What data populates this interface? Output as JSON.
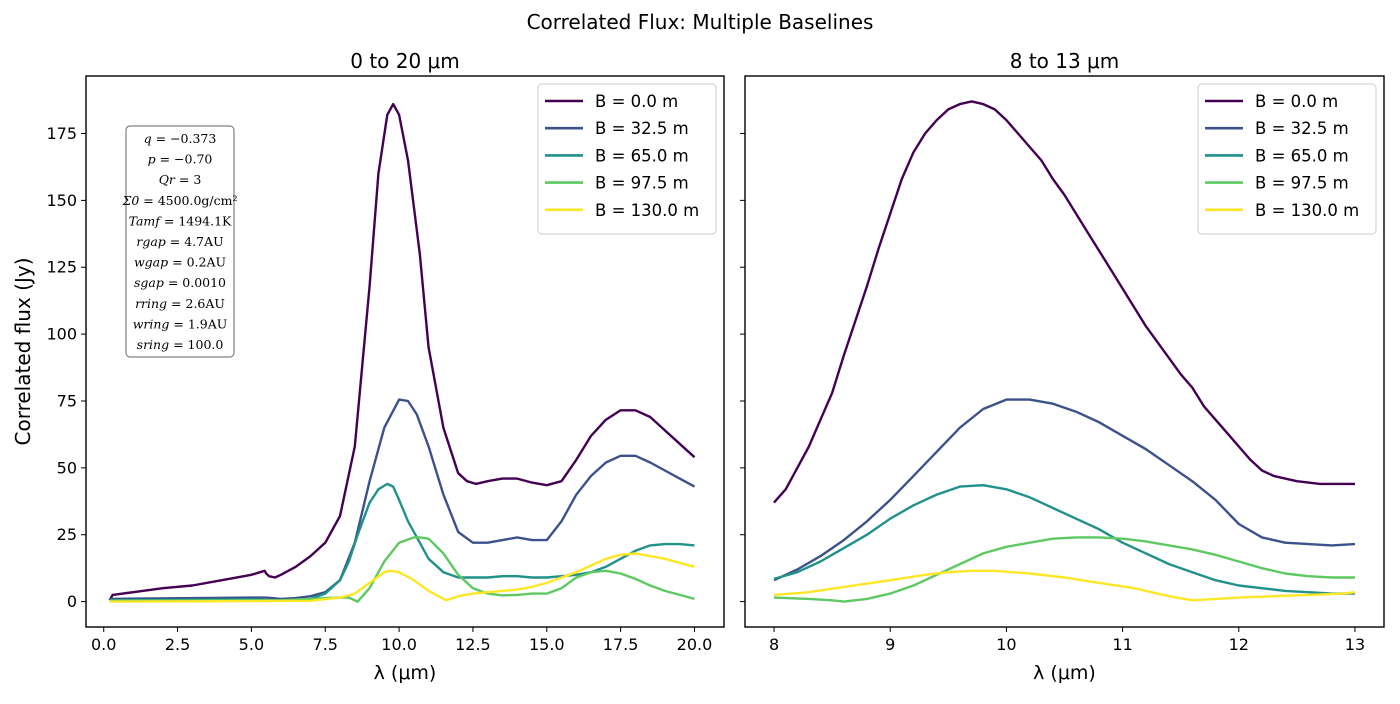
{
  "figure": {
    "suptitle": "Correlated Flux: Multiple Baselines"
  },
  "chart_data": [
    {
      "type": "line",
      "title": "0 to 20 μm",
      "xlabel": "λ (μm)",
      "ylabel": "Correlated flux (Jy)",
      "xlim": [
        -0.6,
        21.0
      ],
      "ylim": [
        -9.5,
        196.5
      ],
      "xticks": [
        0.0,
        2.5,
        5.0,
        7.5,
        10.0,
        12.5,
        15.0,
        17.5,
        20.0
      ],
      "xtick_labels": [
        "0.0",
        "2.5",
        "5.0",
        "7.5",
        "10.0",
        "12.5",
        "15.0",
        "17.5",
        "20.0"
      ],
      "yticks": [
        0,
        25,
        50,
        75,
        100,
        125,
        150,
        175
      ],
      "ytick_labels": [
        "0",
        "25",
        "50",
        "75",
        "100",
        "125",
        "150",
        "175"
      ],
      "legend_position": "upper-right",
      "grid": false,
      "params": [
        {
          "sym": "q",
          "val": "= −0.373"
        },
        {
          "sym": "p",
          "val": "= −0.70"
        },
        {
          "sym": "Qr",
          "val": "= 3"
        },
        {
          "sym": "Σ0",
          "val": "= 4500.0g/cm²"
        },
        {
          "sym": "Tamf",
          "val": "= 1494.1K"
        },
        {
          "sym": "rgap",
          "val": "= 4.7AU"
        },
        {
          "sym": "wgap",
          "val": "= 0.2AU"
        },
        {
          "sym": "sgap",
          "val": "= 0.0010"
        },
        {
          "sym": "rring",
          "val": "= 2.6AU"
        },
        {
          "sym": "wring",
          "val": "= 1.9AU"
        },
        {
          "sym": "sring",
          "val": "= 100.0"
        }
      ],
      "series": [
        {
          "name": "B = 0.0 m",
          "color": "#440154",
          "x": [
            0.2,
            0.3,
            1,
            2,
            3,
            4,
            5,
            5.45,
            5.5,
            5.6,
            5.8,
            6,
            6.5,
            7,
            7.5,
            8,
            8.5,
            9,
            9.3,
            9.6,
            9.8,
            10,
            10.3,
            10.7,
            11,
            11.5,
            12,
            12.3,
            12.6,
            13,
            13.5,
            14,
            14.5,
            15,
            15.5,
            16,
            16.5,
            17,
            17.5,
            18,
            18.5,
            19,
            19.5,
            20
          ],
          "y": [
            0.5,
            2.5,
            3.5,
            5,
            6,
            8,
            10,
            11.5,
            10.5,
            9.5,
            9,
            10,
            13,
            17,
            22,
            32,
            58,
            118,
            160,
            182,
            186,
            182,
            165,
            130,
            95,
            65,
            48,
            45,
            44,
            45,
            46,
            46,
            44.5,
            43.5,
            45,
            53,
            62,
            68,
            71.5,
            71.5,
            69,
            64,
            59,
            54
          ]
        },
        {
          "name": "B = 32.5 m",
          "color": "#3b528b",
          "x": [
            0.2,
            5,
            5.5,
            6,
            6.5,
            7,
            7.5,
            8,
            8.5,
            9,
            9.5,
            10,
            10.3,
            10.6,
            11,
            11.5,
            12,
            12.5,
            13,
            13.5,
            14,
            14.5,
            15,
            15.5,
            16,
            16.5,
            17,
            17.5,
            18,
            18.5,
            19,
            19.5,
            20
          ],
          "y": [
            1,
            1.5,
            1.5,
            1,
            1.3,
            2,
            3.5,
            8,
            22,
            45,
            65,
            75.5,
            75,
            70,
            58,
            40,
            26,
            22,
            22,
            23,
            24,
            23,
            23,
            30,
            40,
            47,
            52,
            54.5,
            54.5,
            52,
            49,
            46,
            43
          ]
        },
        {
          "name": "B = 65.0 m",
          "color": "#21918c",
          "x": [
            0.2,
            5,
            6,
            7,
            7.5,
            8,
            8.3,
            8.6,
            9,
            9.3,
            9.6,
            9.8,
            10,
            10.3,
            10.7,
            11,
            11.5,
            12,
            12.3,
            12.6,
            13,
            13.5,
            14,
            14.5,
            15,
            15.5,
            16,
            16.5,
            17,
            17.5,
            18,
            18.5,
            19,
            19.5,
            20
          ],
          "y": [
            0.5,
            0.8,
            0.5,
            1,
            3,
            8,
            15,
            25,
            37,
            42,
            44,
            43,
            38,
            30,
            22,
            16,
            11,
            9,
            9,
            9,
            9,
            9.5,
            9.5,
            9,
            9,
            9.5,
            10,
            11,
            13,
            16,
            19,
            21,
            21.5,
            21.5,
            21
          ]
        },
        {
          "name": "B = 97.5 m",
          "color": "#5ec962",
          "x": [
            0.2,
            6,
            7,
            7.5,
            8,
            8.3,
            8.6,
            9,
            9.5,
            10,
            10.5,
            10.7,
            11,
            11.5,
            12,
            12.5,
            13,
            13.5,
            14,
            14.5,
            15,
            15.5,
            16,
            16.5,
            17,
            17.5,
            18,
            18.5,
            19,
            19.5,
            20
          ],
          "y": [
            0.3,
            0.5,
            1,
            1.3,
            1.5,
            1.5,
            0,
            5,
            15,
            22,
            24,
            24,
            23.5,
            18,
            10,
            5,
            3,
            2.3,
            2.5,
            3,
            3,
            5,
            9,
            11,
            11.5,
            10.5,
            8.5,
            6,
            4,
            2.5,
            1
          ]
        },
        {
          "name": "B = 130.0 m",
          "color": "#fde725",
          "x": [
            0.2,
            7,
            8,
            8.5,
            9,
            9.5,
            9.7,
            10,
            10.5,
            11,
            11.6,
            12,
            12.5,
            13,
            13.5,
            14,
            14.5,
            15,
            15.5,
            16,
            16.5,
            17,
            17.5,
            18,
            18.5,
            19,
            19.5,
            20
          ],
          "y": [
            0,
            0.3,
            1.5,
            3,
            7,
            11,
            11.5,
            11,
            8,
            4,
            0.5,
            2,
            3,
            3.5,
            4,
            4.5,
            5.5,
            7,
            9,
            11,
            13.5,
            16,
            17.5,
            18,
            17,
            16,
            14.5,
            13
          ]
        }
      ]
    },
    {
      "type": "line",
      "title": "8 to 13 μm",
      "xlabel": "λ (μm)",
      "ylabel": "",
      "xlim": [
        7.75,
        13.25
      ],
      "ylim": [
        -9.5,
        196.5
      ],
      "xticks": [
        8,
        9,
        10,
        11,
        12,
        13
      ],
      "xtick_labels": [
        "8",
        "9",
        "10",
        "11",
        "12",
        "13"
      ],
      "yticks": [
        0,
        25,
        50,
        75,
        100,
        125,
        150,
        175
      ],
      "ytick_labels": [
        "",
        "",
        "",
        "",
        "",
        "",
        "",
        ""
      ],
      "legend_position": "upper-right",
      "grid": false,
      "series": [
        {
          "name": "B = 0.0 m",
          "color": "#440154",
          "x": [
            8,
            8.1,
            8.2,
            8.3,
            8.4,
            8.5,
            8.6,
            8.7,
            8.8,
            8.9,
            9,
            9.1,
            9.2,
            9.3,
            9.4,
            9.5,
            9.6,
            9.7,
            9.8,
            9.9,
            10,
            10.1,
            10.2,
            10.3,
            10.4,
            10.5,
            10.6,
            10.7,
            10.8,
            10.9,
            11,
            11.1,
            11.2,
            11.3,
            11.4,
            11.5,
            11.6,
            11.7,
            11.8,
            11.9,
            12,
            12.1,
            12.2,
            12.3,
            12.4,
            12.5,
            12.6,
            12.7,
            12.8,
            12.9,
            13
          ],
          "y": [
            37,
            42,
            50,
            58,
            68,
            78,
            92,
            105,
            118,
            132,
            145,
            158,
            168,
            175,
            180,
            184,
            186,
            187,
            186,
            184,
            180,
            175,
            170,
            165,
            158,
            152,
            145,
            138,
            131,
            124,
            117,
            110,
            103,
            97,
            91,
            85,
            80,
            73,
            68,
            63,
            58,
            53,
            49,
            47,
            46,
            45,
            44.5,
            44,
            44,
            44,
            44
          ]
        },
        {
          "name": "B = 32.5 m",
          "color": "#3b528b",
          "x": [
            8,
            8.2,
            8.4,
            8.6,
            8.8,
            9,
            9.2,
            9.4,
            9.6,
            9.8,
            10,
            10.2,
            10.4,
            10.6,
            10.8,
            11,
            11.2,
            11.4,
            11.6,
            11.8,
            12,
            12.2,
            12.4,
            12.6,
            12.8,
            13
          ],
          "y": [
            8,
            12,
            17,
            23,
            30,
            38,
            47,
            56,
            65,
            72,
            75.5,
            75.5,
            74,
            71,
            67,
            62,
            57,
            51,
            45,
            38,
            29,
            24,
            22,
            21.5,
            21,
            21.5
          ]
        },
        {
          "name": "B = 65.0 m",
          "color": "#21918c",
          "x": [
            8,
            8.2,
            8.4,
            8.6,
            8.8,
            9,
            9.2,
            9.4,
            9.6,
            9.8,
            10,
            10.2,
            10.4,
            10.6,
            10.8,
            11,
            11.2,
            11.4,
            11.6,
            11.8,
            12,
            12.2,
            12.4,
            12.6,
            12.8,
            13
          ],
          "y": [
            8.5,
            11,
            15,
            20,
            25,
            31,
            36,
            40,
            43,
            43.5,
            42,
            39,
            35,
            31,
            27,
            22,
            18,
            14,
            11,
            8,
            6,
            5,
            4,
            3.5,
            3,
            3
          ]
        },
        {
          "name": "B = 97.5 m",
          "color": "#5ec962",
          "x": [
            8,
            8.3,
            8.5,
            8.6,
            8.8,
            9,
            9.2,
            9.4,
            9.6,
            9.8,
            10,
            10.2,
            10.4,
            10.6,
            10.8,
            11,
            11.2,
            11.4,
            11.6,
            11.8,
            12,
            12.2,
            12.4,
            12.6,
            12.8,
            13
          ],
          "y": [
            1.5,
            1,
            0.5,
            0,
            1,
            3,
            6,
            10,
            14,
            18,
            20.5,
            22,
            23.5,
            24,
            24,
            23.5,
            22.5,
            21,
            19.5,
            17.5,
            15,
            12.5,
            10.5,
            9.5,
            9,
            9
          ]
        },
        {
          "name": "B = 130.0 m",
          "color": "#fde725",
          "x": [
            8,
            8.3,
            8.6,
            9,
            9.3,
            9.5,
            9.7,
            9.9,
            10.2,
            10.5,
            10.8,
            11.1,
            11.4,
            11.6,
            11.8,
            12,
            12.3,
            12.6,
            12.9,
            13
          ],
          "y": [
            2.5,
            3.5,
            5.5,
            8,
            10,
            11,
            11.5,
            11.5,
            10.5,
            9,
            7,
            5,
            2,
            0.5,
            1,
            1.5,
            2,
            2.5,
            3,
            3.5
          ]
        }
      ]
    }
  ]
}
